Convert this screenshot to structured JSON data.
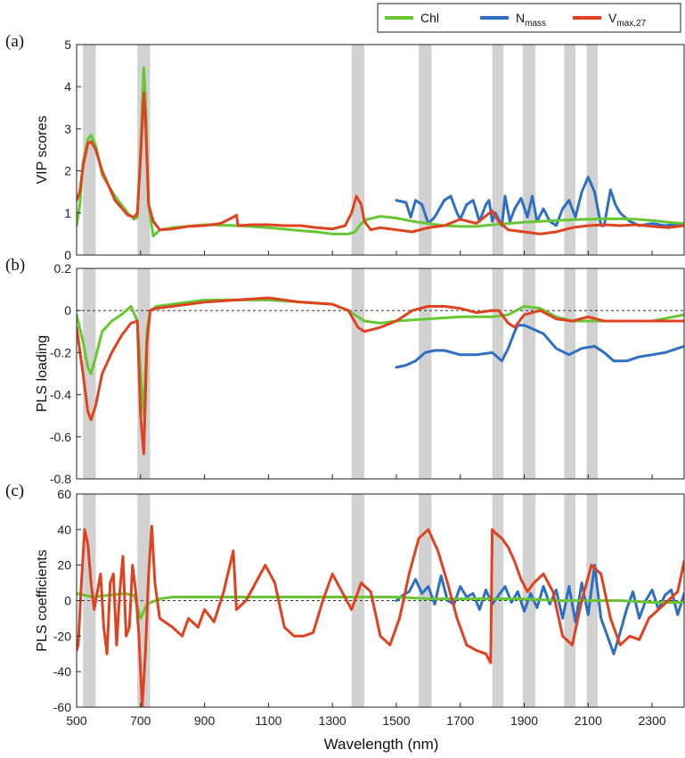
{
  "colors": {
    "chl": "#66c733",
    "nmass": "#2f6fc2",
    "vmax": "#e0411f",
    "band": "#c9c9c9",
    "axis": "#222222"
  },
  "legend": {
    "items": [
      {
        "key": "chl",
        "label": "Chl",
        "sub": ""
      },
      {
        "key": "nmass",
        "label": "N",
        "sub": "mass"
      },
      {
        "key": "vmax",
        "label": "V",
        "sub": "max,27"
      }
    ],
    "position": "top-right"
  },
  "xlabel": "Wavelength (nm)",
  "chart_data": [
    {
      "type": "line",
      "panel_label": "(a)",
      "ylabel": "VIP scores",
      "xlim": [
        500,
        2400
      ],
      "ylim": [
        0,
        5
      ],
      "xticks": [
        "500",
        "700",
        "900",
        "1100",
        "1300",
        "1500",
        "1700",
        "1900",
        "2100",
        "2300"
      ],
      "yticks": [
        "0",
        "1",
        "2",
        "3",
        "4",
        "5"
      ],
      "zero_line": false,
      "highlight_bands_nm": [
        [
          520,
          560
        ],
        [
          690,
          730
        ],
        [
          1360,
          1400
        ],
        [
          1570,
          1610
        ],
        [
          1800,
          1835
        ],
        [
          1895,
          1935
        ],
        [
          2025,
          2060
        ],
        [
          2095,
          2130
        ]
      ],
      "series": [
        {
          "key": "chl",
          "name": "Chl",
          "x": [
            500,
            510,
            520,
            535,
            545,
            560,
            580,
            620,
            660,
            680,
            690,
            700,
            710,
            715,
            725,
            740,
            760,
            800,
            900,
            1000,
            1100,
            1200,
            1250,
            1300,
            1350,
            1370,
            1390,
            1410,
            1450,
            1500,
            1550,
            1600,
            1650,
            1700,
            1750,
            1800,
            1850,
            1900,
            1950,
            2000,
            2050,
            2100,
            2150,
            2200,
            2250,
            2300,
            2350,
            2400
          ],
          "y": [
            0.7,
            1.2,
            2.2,
            2.75,
            2.85,
            2.6,
            1.9,
            1.4,
            1.0,
            0.85,
            0.9,
            2.5,
            4.45,
            3.8,
            1.2,
            0.45,
            0.6,
            0.65,
            0.72,
            0.7,
            0.65,
            0.58,
            0.55,
            0.5,
            0.5,
            0.55,
            0.75,
            0.85,
            0.92,
            0.88,
            0.8,
            0.75,
            0.7,
            0.68,
            0.68,
            0.72,
            0.75,
            0.78,
            0.8,
            0.82,
            0.84,
            0.85,
            0.86,
            0.86,
            0.85,
            0.82,
            0.78,
            0.75
          ]
        },
        {
          "key": "nmass",
          "name": "N mass",
          "x": [
            1500,
            1530,
            1545,
            1560,
            1580,
            1600,
            1620,
            1650,
            1670,
            1690,
            1700,
            1720,
            1740,
            1760,
            1780,
            1790,
            1800,
            1810,
            1830,
            1840,
            1855,
            1870,
            1890,
            1910,
            1925,
            1940,
            1960,
            1980,
            2000,
            2020,
            2040,
            2060,
            2080,
            2100,
            2120,
            2140,
            2150,
            2170,
            2185,
            2200,
            2230,
            2260,
            2300,
            2340,
            2370,
            2400
          ],
          "y": [
            1.3,
            1.25,
            0.9,
            1.3,
            1.2,
            0.75,
            0.9,
            1.3,
            1.4,
            1.0,
            0.85,
            1.2,
            1.3,
            0.8,
            1.2,
            1.3,
            0.8,
            1.0,
            0.7,
            1.4,
            0.8,
            1.1,
            1.35,
            0.9,
            1.4,
            0.8,
            1.1,
            0.8,
            0.7,
            1.1,
            1.3,
            0.9,
            1.5,
            1.85,
            1.5,
            0.7,
            0.7,
            1.55,
            1.2,
            1.0,
            0.8,
            0.7,
            0.75,
            0.7,
            0.72,
            0.7
          ]
        },
        {
          "key": "vmax",
          "name": "Vmax,27",
          "x": [
            500,
            510,
            520,
            535,
            545,
            560,
            580,
            620,
            660,
            680,
            690,
            700,
            710,
            715,
            725,
            740,
            760,
            800,
            850,
            900,
            950,
            990,
            1000,
            1005,
            1050,
            1100,
            1150,
            1200,
            1250,
            1300,
            1340,
            1360,
            1375,
            1390,
            1400,
            1420,
            1450,
            1500,
            1550,
            1600,
            1650,
            1700,
            1750,
            1800,
            1820,
            1850,
            1900,
            1950,
            2000,
            2050,
            2100,
            2150,
            2200,
            2250,
            2300,
            2350,
            2400
          ],
          "y": [
            1.3,
            1.5,
            2.1,
            2.65,
            2.7,
            2.5,
            2.0,
            1.3,
            0.95,
            0.9,
            1.0,
            2.3,
            3.85,
            3.3,
            1.2,
            0.8,
            0.6,
            0.62,
            0.68,
            0.7,
            0.75,
            0.9,
            0.95,
            0.7,
            0.72,
            0.72,
            0.7,
            0.7,
            0.65,
            0.62,
            0.7,
            1.0,
            1.4,
            1.2,
            0.8,
            0.6,
            0.65,
            0.6,
            0.55,
            0.65,
            0.7,
            0.85,
            0.75,
            1.05,
            0.8,
            0.6,
            0.55,
            0.5,
            0.55,
            0.65,
            0.7,
            0.72,
            0.7,
            0.72,
            0.68,
            0.65,
            0.7
          ]
        }
      ]
    },
    {
      "type": "line",
      "panel_label": "(b)",
      "ylabel": "PLS loading",
      "xlim": [
        500,
        2400
      ],
      "ylim": [
        -0.8,
        0.2
      ],
      "xticks": [
        "500",
        "700",
        "900",
        "1100",
        "1300",
        "1500",
        "1700",
        "1900",
        "2100",
        "2300"
      ],
      "yticks": [
        "0.2",
        "0",
        "-0.2",
        "-0.4",
        "-0.6",
        "-0.8"
      ],
      "zero_line": true,
      "highlight_bands_nm": [
        [
          520,
          560
        ],
        [
          690,
          730
        ],
        [
          1360,
          1400
        ],
        [
          1570,
          1610
        ],
        [
          1800,
          1835
        ],
        [
          1895,
          1935
        ],
        [
          2025,
          2060
        ],
        [
          2095,
          2130
        ]
      ],
      "series": [
        {
          "key": "chl",
          "name": "Chl",
          "x": [
            500,
            520,
            535,
            545,
            560,
            580,
            610,
            640,
            670,
            690,
            700,
            710,
            720,
            730,
            750,
            800,
            900,
            1000,
            1100,
            1200,
            1300,
            1350,
            1380,
            1400,
            1450,
            1500,
            1600,
            1700,
            1800,
            1850,
            1900,
            1950,
            2000,
            2050,
            2100,
            2200,
            2300,
            2400
          ],
          "y": [
            -0.02,
            -0.15,
            -0.27,
            -0.3,
            -0.22,
            -0.1,
            -0.05,
            -0.02,
            0.02,
            -0.05,
            -0.3,
            -0.5,
            -0.1,
            0.0,
            0.02,
            0.03,
            0.05,
            0.05,
            0.05,
            0.04,
            0.03,
            0.0,
            -0.03,
            -0.05,
            -0.06,
            -0.05,
            -0.04,
            -0.03,
            -0.03,
            -0.02,
            0.02,
            0.01,
            -0.03,
            -0.05,
            -0.05,
            -0.05,
            -0.05,
            -0.02
          ]
        },
        {
          "key": "nmass",
          "name": "N mass",
          "x": [
            1500,
            1530,
            1560,
            1590,
            1620,
            1650,
            1700,
            1750,
            1800,
            1830,
            1850,
            1870,
            1880,
            1900,
            1930,
            1960,
            2000,
            2040,
            2080,
            2120,
            2150,
            2180,
            2220,
            2260,
            2300,
            2340,
            2380,
            2400
          ],
          "y": [
            -0.27,
            -0.26,
            -0.24,
            -0.2,
            -0.19,
            -0.19,
            -0.21,
            -0.21,
            -0.2,
            -0.24,
            -0.18,
            -0.1,
            -0.07,
            -0.07,
            -0.09,
            -0.11,
            -0.18,
            -0.21,
            -0.18,
            -0.17,
            -0.2,
            -0.24,
            -0.24,
            -0.22,
            -0.21,
            -0.2,
            -0.18,
            -0.17
          ]
        },
        {
          "key": "vmax",
          "name": "Vmax,27",
          "x": [
            500,
            520,
            535,
            545,
            560,
            580,
            610,
            640,
            670,
            690,
            700,
            710,
            720,
            730,
            750,
            800,
            900,
            1000,
            1100,
            1200,
            1300,
            1350,
            1380,
            1400,
            1450,
            1500,
            1550,
            1600,
            1650,
            1700,
            1750,
            1800,
            1820,
            1850,
            1870,
            1900,
            1950,
            2000,
            2050,
            2100,
            2150,
            2200,
            2300,
            2400
          ],
          "y": [
            -0.08,
            -0.3,
            -0.48,
            -0.52,
            -0.45,
            -0.3,
            -0.2,
            -0.12,
            -0.06,
            -0.05,
            -0.5,
            -0.68,
            -0.15,
            0.0,
            0.01,
            0.02,
            0.04,
            0.05,
            0.06,
            0.04,
            0.03,
            0.0,
            -0.08,
            -0.1,
            -0.08,
            -0.05,
            0.0,
            0.02,
            0.02,
            0.01,
            -0.01,
            0.0,
            0.0,
            -0.06,
            -0.08,
            -0.02,
            0.0,
            -0.04,
            -0.05,
            -0.03,
            -0.05,
            -0.05,
            -0.05,
            -0.05
          ]
        }
      ]
    },
    {
      "type": "line",
      "panel_label": "(c)",
      "ylabel": "PLS coefficients",
      "xlim": [
        500,
        2400
      ],
      "ylim": [
        -60,
        60
      ],
      "xticks": [
        "500",
        "700",
        "900",
        "1100",
        "1300",
        "1500",
        "1700",
        "1900",
        "2100",
        "2300"
      ],
      "yticks": [
        "60",
        "40",
        "20",
        "0",
        "-20",
        "-40",
        "-60"
      ],
      "zero_line": true,
      "highlight_bands_nm": [
        [
          520,
          560
        ],
        [
          690,
          730
        ],
        [
          1360,
          1400
        ],
        [
          1570,
          1610
        ],
        [
          1800,
          1835
        ],
        [
          1895,
          1935
        ],
        [
          2025,
          2060
        ],
        [
          2095,
          2130
        ]
      ],
      "series": [
        {
          "key": "chl",
          "name": "Chl",
          "x": [
            500,
            550,
            600,
            650,
            680,
            700,
            720,
            760,
            800,
            900,
            1000,
            1100,
            1200,
            1300,
            1400,
            1500,
            1600,
            1700,
            1800,
            1900,
            2000,
            2100,
            2200,
            2300,
            2400
          ],
          "y": [
            4,
            2,
            3,
            4,
            3,
            -10,
            -2,
            1,
            2,
            2,
            2,
            2,
            2,
            2,
            2,
            2,
            1,
            1,
            1,
            1,
            0,
            0,
            0,
            -1,
            -1
          ]
        },
        {
          "key": "nmass",
          "name": "N mass",
          "x": [
            1500,
            1520,
            1540,
            1560,
            1580,
            1600,
            1620,
            1640,
            1660,
            1680,
            1700,
            1720,
            1740,
            1760,
            1780,
            1800,
            1820,
            1840,
            1860,
            1880,
            1900,
            1920,
            1940,
            1960,
            1980,
            2000,
            2020,
            2040,
            2060,
            2080,
            2100,
            2120,
            2140,
            2160,
            2180,
            2200,
            2220,
            2240,
            2260,
            2280,
            2300,
            2320,
            2340,
            2360,
            2380,
            2400
          ],
          "y": [
            0,
            3,
            5,
            12,
            4,
            8,
            -2,
            14,
            0,
            -2,
            8,
            2,
            4,
            -5,
            6,
            -2,
            3,
            8,
            -1,
            5,
            -6,
            4,
            -4,
            8,
            -2,
            6,
            -10,
            8,
            -12,
            10,
            -8,
            20,
            -10,
            -20,
            -30,
            -18,
            -5,
            5,
            -10,
            0,
            6,
            -5,
            3,
            6,
            -8,
            4
          ]
        },
        {
          "key": "vmax",
          "name": "Vmax,27",
          "x": [
            500,
            505,
            515,
            525,
            535,
            545,
            555,
            565,
            575,
            585,
            595,
            605,
            615,
            625,
            635,
            645,
            655,
            665,
            675,
            685,
            695,
            705,
            715,
            725,
            735,
            745,
            760,
            800,
            830,
            850,
            880,
            900,
            930,
            960,
            990,
            1000,
            1030,
            1060,
            1090,
            1120,
            1150,
            1180,
            1210,
            1240,
            1270,
            1300,
            1330,
            1360,
            1390,
            1420,
            1450,
            1480,
            1510,
            1540,
            1570,
            1600,
            1630,
            1660,
            1690,
            1720,
            1750,
            1780,
            1795,
            1800,
            1810,
            1830,
            1850,
            1870,
            1890,
            1910,
            1930,
            1960,
            1990,
            2020,
            2050,
            2080,
            2110,
            2140,
            2170,
            2200,
            2230,
            2260,
            2290,
            2320,
            2350,
            2380,
            2400
          ],
          "y": [
            -28,
            -25,
            10,
            40,
            32,
            10,
            -5,
            5,
            15,
            -15,
            -30,
            10,
            15,
            -25,
            5,
            25,
            -20,
            -15,
            20,
            5,
            -20,
            -60,
            -30,
            15,
            42,
            10,
            -10,
            -15,
            -20,
            -10,
            -15,
            -5,
            -12,
            5,
            28,
            -5,
            0,
            10,
            20,
            10,
            -15,
            -20,
            -20,
            -18,
            0,
            15,
            5,
            -5,
            10,
            5,
            -20,
            -25,
            -10,
            15,
            35,
            40,
            28,
            10,
            -10,
            -25,
            -28,
            -30,
            -35,
            40,
            38,
            35,
            30,
            22,
            12,
            5,
            10,
            15,
            5,
            -20,
            -25,
            0,
            20,
            15,
            -10,
            -25,
            -20,
            -22,
            -10,
            -5,
            0,
            5,
            22
          ]
        }
      ]
    }
  ]
}
